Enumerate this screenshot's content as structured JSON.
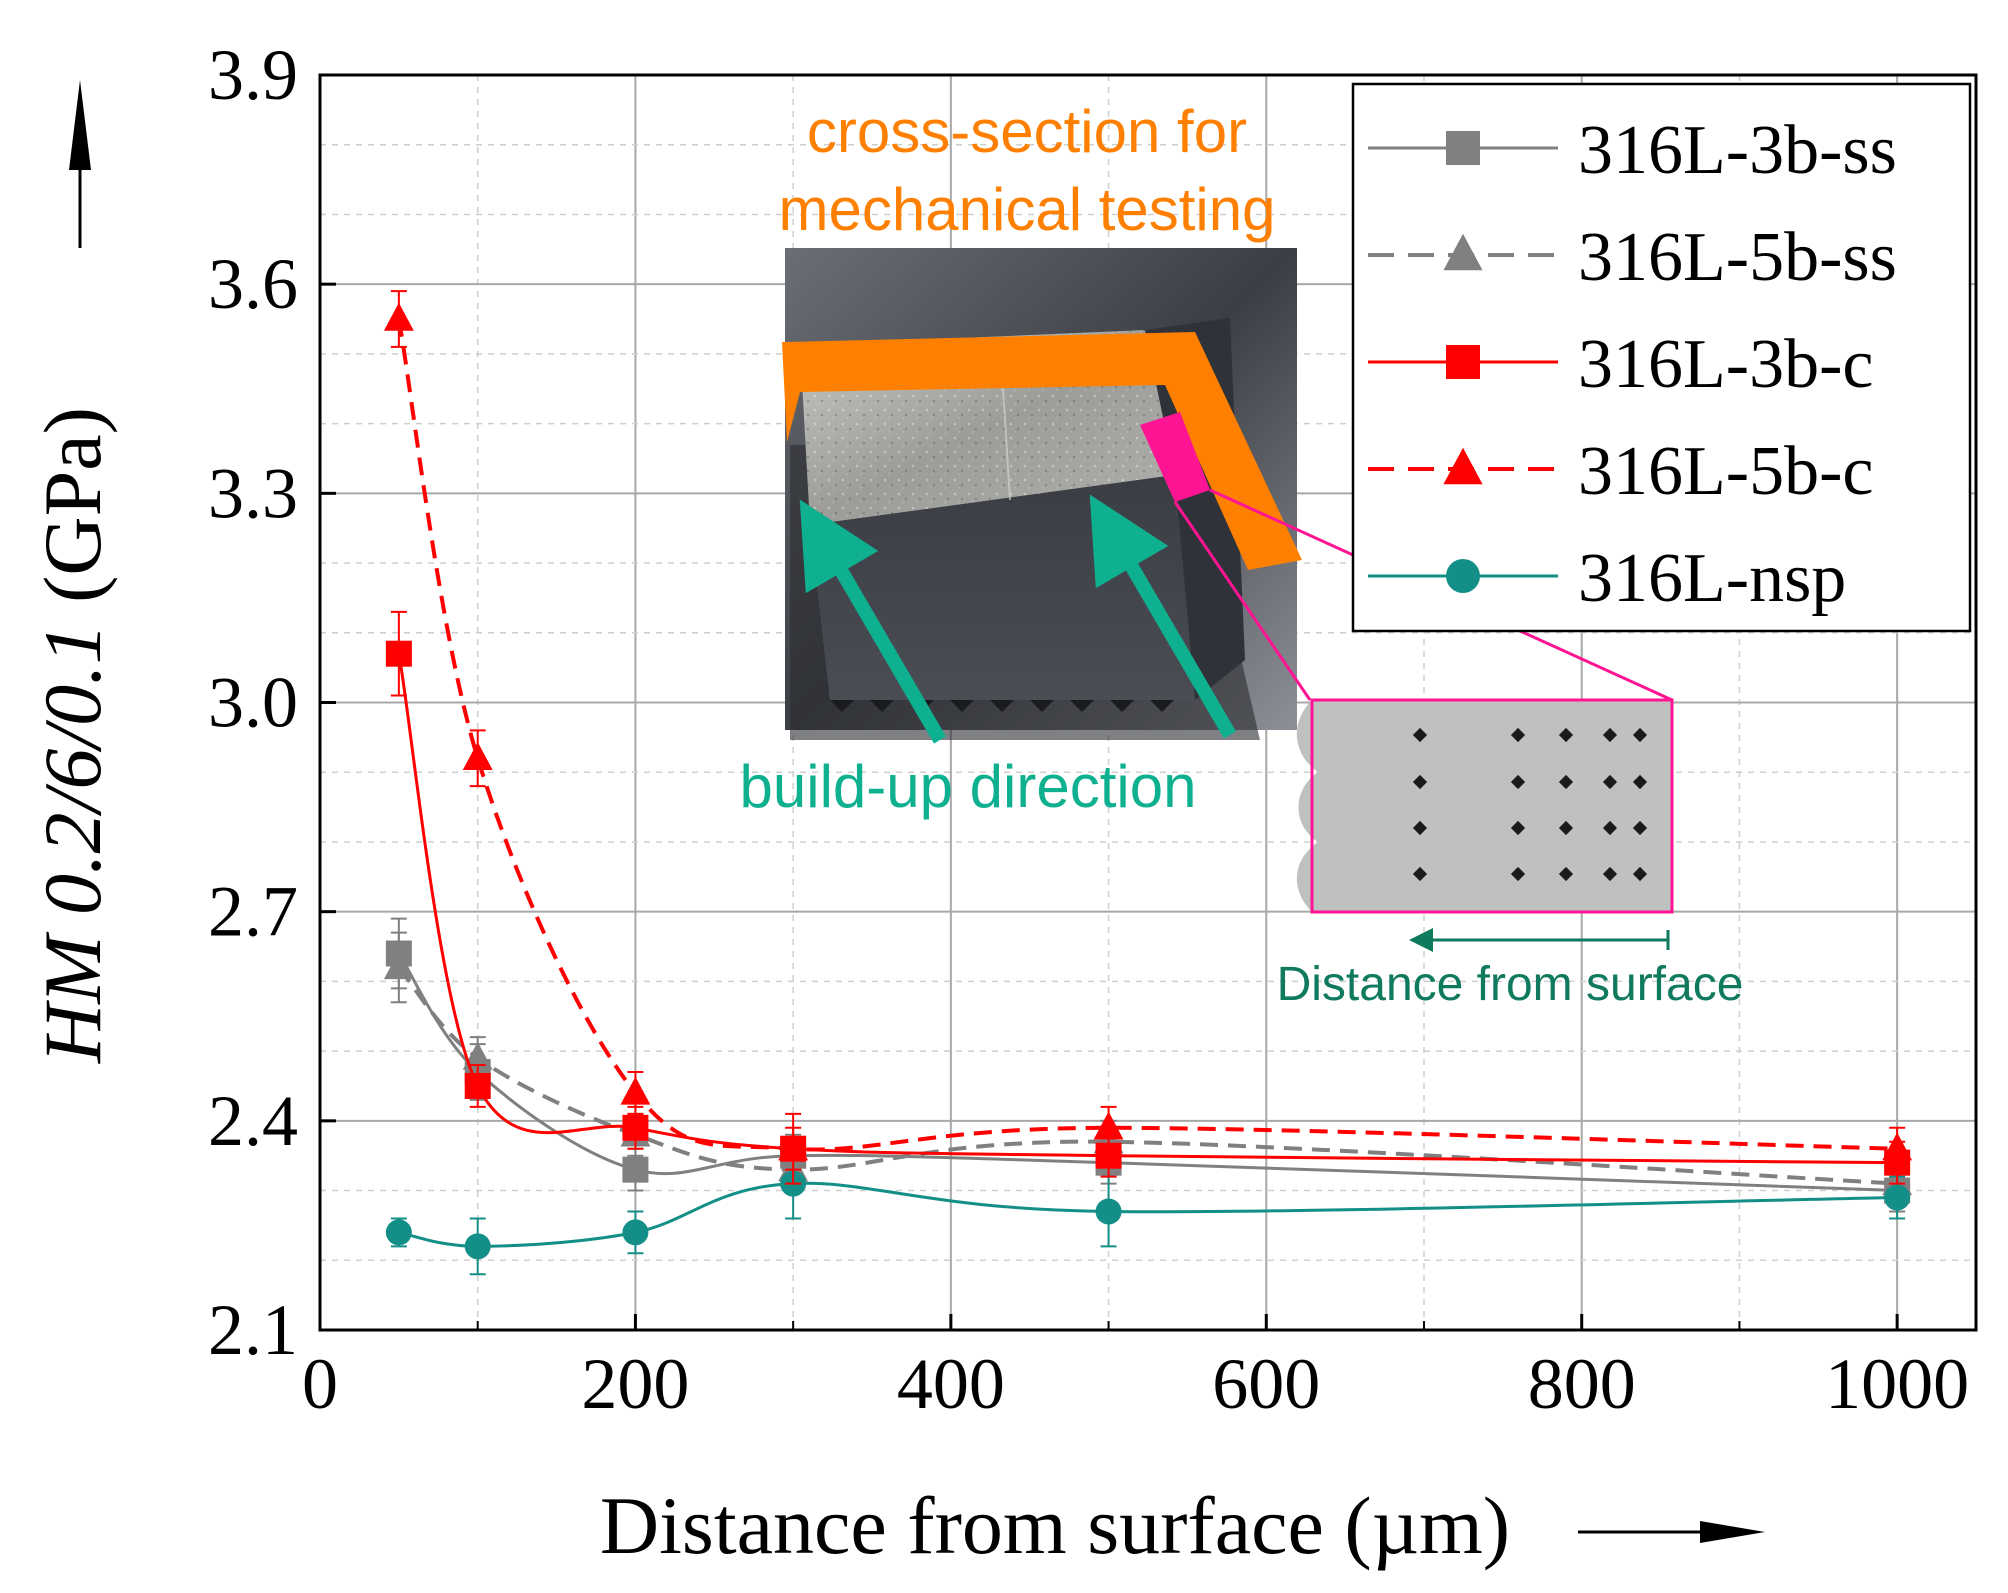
{
  "chart_data": {
    "type": "line",
    "title": "",
    "xlabel": "Distance from surface (µm)",
    "ylabel_italic": "HM 0.2/6/0.1",
    "ylabel_unit": "(GPa)",
    "xlim": [
      0,
      1050
    ],
    "ylim": [
      2.1,
      3.9
    ],
    "xticks": [
      0,
      200,
      400,
      600,
      800,
      1000
    ],
    "yticks": [
      2.1,
      2.4,
      2.7,
      3.0,
      3.3,
      3.6,
      3.9
    ],
    "xtick_labels": [
      "0",
      "200",
      "400",
      "600",
      "800",
      "1000"
    ],
    "ytick_labels": [
      "2.1",
      "2.4",
      "2.7",
      "3.0",
      "3.3",
      "3.6",
      "3.9"
    ],
    "grid": true,
    "legend_position": "top-right",
    "x": [
      50,
      100,
      200,
      300,
      500,
      1000
    ],
    "series": [
      {
        "name": "316L-3b-ss",
        "color": "#808080",
        "marker": "square",
        "dash": "solid",
        "values": [
          2.64,
          2.47,
          2.33,
          2.35,
          2.34,
          2.3
        ],
        "errors": [
          0.05,
          0.04,
          0.03,
          0.03,
          0.03,
          0.03
        ]
      },
      {
        "name": "316L-5b-ss",
        "color": "#808080",
        "marker": "triangle",
        "dash": "dashed",
        "values": [
          2.62,
          2.49,
          2.38,
          2.33,
          2.37,
          2.31
        ],
        "errors": [
          0.05,
          0.03,
          0.03,
          0.03,
          0.03,
          0.03
        ]
      },
      {
        "name": "316L-3b-c",
        "color": "#ff0000",
        "marker": "square",
        "dash": "solid",
        "values": [
          3.07,
          2.45,
          2.39,
          2.36,
          2.35,
          2.34
        ],
        "errors": [
          0.06,
          0.03,
          0.03,
          0.03,
          0.03,
          0.03
        ]
      },
      {
        "name": "316L-5b-c",
        "color": "#ff0000",
        "marker": "triangle",
        "dash": "dashed",
        "values": [
          3.55,
          2.92,
          2.44,
          2.36,
          2.39,
          2.36
        ],
        "errors": [
          0.04,
          0.04,
          0.03,
          0.05,
          0.03,
          0.03
        ]
      },
      {
        "name": "316L-nsp",
        "color": "#138f87",
        "marker": "circle",
        "dash": "solid",
        "values": [
          2.24,
          2.22,
          2.24,
          2.31,
          2.27,
          2.29
        ],
        "errors": [
          0.02,
          0.04,
          0.03,
          0.05,
          0.05,
          0.03
        ]
      }
    ],
    "annotations": {
      "cross_section_line1": "cross-section for",
      "cross_section_line2": "mechanical testing",
      "build_up": "build-up direction",
      "distance_from_surface": "Distance from surface"
    },
    "colors": {
      "orange": "#ff8000",
      "teal": "#0fb090",
      "magenta": "#ff1493",
      "schematic_text": "#0f7a5e"
    }
  }
}
